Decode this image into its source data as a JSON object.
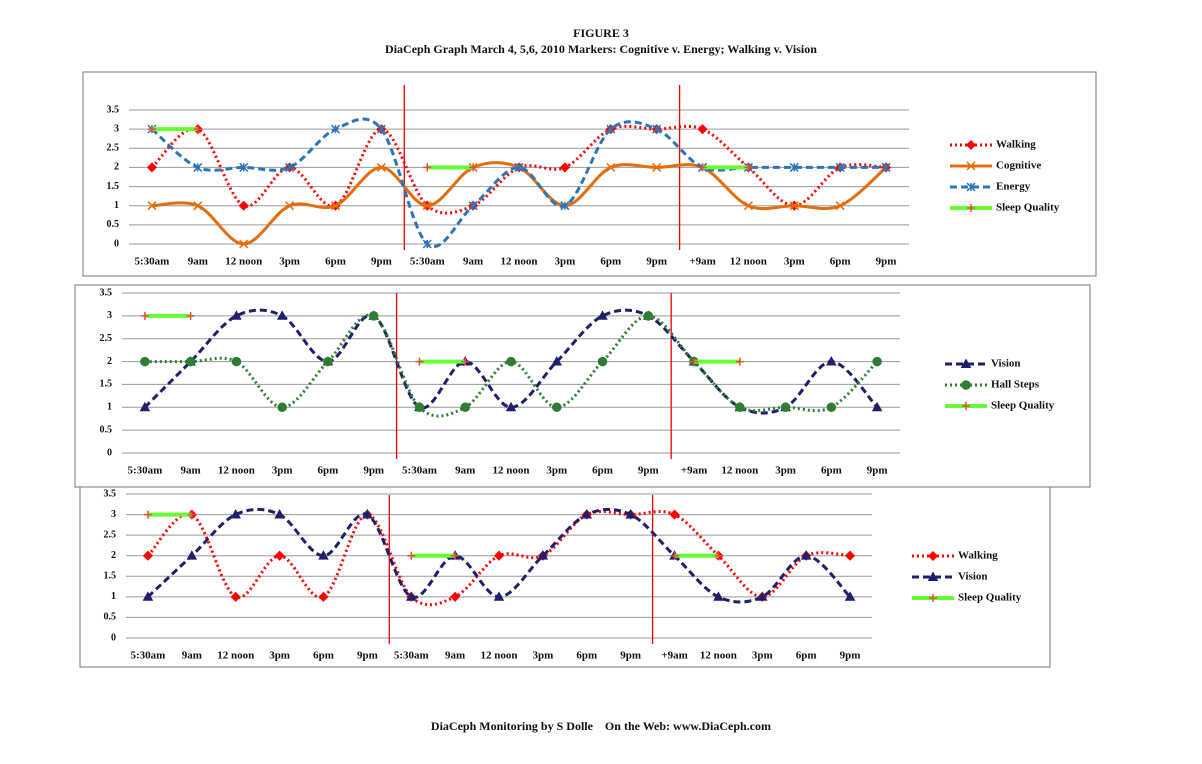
{
  "header": {
    "title": "FIGURE 3",
    "subtitle": "DiaCeph Graph March 4, 5,6, 2010 Markers: Cognitive v. Energy; Walking v. Vision"
  },
  "chart_data": [
    {
      "type": "line",
      "categories": [
        "5:30am",
        "9am",
        "12 noon",
        "3pm",
        "6pm",
        "9pm",
        "5:30am",
        "9am",
        "12 noon",
        "3pm",
        "6pm",
        "9pm",
        "+9am",
        "12 noon",
        "3pm",
        "6pm",
        "9pm"
      ],
      "ylim": [
        0,
        3.5
      ],
      "yticks": [
        0,
        0.5,
        1,
        1.5,
        2,
        2.5,
        3,
        3.5
      ],
      "grid": true,
      "legend": "right",
      "smooth": true,
      "series": [
        {
          "name": "Walking",
          "color": "#ff0000",
          "marker": "diamond",
          "line_style": "dotted",
          "values": [
            2,
            3,
            1,
            2,
            1,
            3,
            1,
            1,
            2,
            2,
            3,
            3,
            3,
            2,
            1,
            2,
            2
          ]
        },
        {
          "name": "Cognitive",
          "color": "#e46c0a",
          "marker": "x",
          "line_style": "solid",
          "values": [
            1,
            1,
            0,
            1,
            1,
            2,
            1,
            2,
            2,
            1,
            2,
            2,
            2,
            1,
            1,
            1,
            2
          ]
        },
        {
          "name": "Energy",
          "color": "#2e75b6",
          "marker": "asterisk",
          "line_style": "dashed",
          "values": [
            3,
            2,
            2,
            2,
            3,
            3,
            0,
            1,
            2,
            1,
            3,
            3,
            2,
            2,
            2,
            2,
            2
          ]
        },
        {
          "name": "Sleep Quality",
          "color": "#66ff33",
          "marker": "plus",
          "line_style": "solid",
          "values": [
            3,
            3,
            null,
            null,
            null,
            null,
            2,
            2,
            null,
            null,
            null,
            null,
            2,
            2,
            null,
            null,
            null
          ]
        }
      ]
    },
    {
      "type": "line",
      "categories": [
        "5:30am",
        "9am",
        "12 noon",
        "3pm",
        "6pm",
        "9pm",
        "5:30am",
        "9am",
        "12 noon",
        "3pm",
        "6pm",
        "9pm",
        "+9am",
        "12 noon",
        "3pm",
        "6pm",
        "9pm"
      ],
      "ylim": [
        0,
        3.5
      ],
      "yticks": [
        0,
        0.5,
        1,
        1.5,
        2,
        2.5,
        3,
        3.5
      ],
      "grid": true,
      "legend": "right",
      "smooth": true,
      "series": [
        {
          "name": "Vision",
          "color": "#1f1f6b",
          "marker": "triangle",
          "line_style": "dashed",
          "values": [
            1,
            2,
            3,
            3,
            2,
            3,
            1,
            2,
            1,
            2,
            3,
            3,
            2,
            1,
            1,
            2,
            1
          ]
        },
        {
          "name": "Hall Steps",
          "color": "#2e7d32",
          "marker": "circle",
          "line_style": "dotted",
          "values": [
            2,
            2,
            2,
            1,
            2,
            3,
            1,
            1,
            2,
            1,
            2,
            3,
            2,
            1,
            1,
            1,
            2
          ]
        },
        {
          "name": "Sleep Quality",
          "color": "#66ff33",
          "marker": "plus",
          "line_style": "solid",
          "values": [
            3,
            3,
            null,
            null,
            null,
            null,
            2,
            2,
            null,
            null,
            null,
            null,
            2,
            2,
            null,
            null,
            null
          ]
        }
      ]
    },
    {
      "type": "line",
      "categories": [
        "5:30am",
        "9am",
        "12 noon",
        "3pm",
        "6pm",
        "9pm",
        "5:30am",
        "9am",
        "12 noon",
        "3pm",
        "6pm",
        "9pm",
        "+9am",
        "12 noon",
        "3pm",
        "6pm",
        "9pm"
      ],
      "ylim": [
        0,
        3.5
      ],
      "yticks": [
        0,
        0.5,
        1,
        1.5,
        2,
        2.5,
        3,
        3.5
      ],
      "grid": true,
      "legend": "right",
      "smooth": true,
      "series": [
        {
          "name": "Walking",
          "color": "#ff0000",
          "marker": "diamond",
          "line_style": "dotted",
          "values": [
            2,
            3,
            1,
            2,
            1,
            3,
            1,
            1,
            2,
            2,
            3,
            3,
            3,
            2,
            1,
            2,
            2
          ]
        },
        {
          "name": "Vision",
          "color": "#1f1f6b",
          "marker": "triangle",
          "line_style": "dashed",
          "values": [
            1,
            2,
            3,
            3,
            2,
            3,
            1,
            2,
            1,
            2,
            3,
            3,
            2,
            1,
            1,
            2,
            1
          ]
        },
        {
          "name": "Sleep Quality",
          "color": "#66ff33",
          "marker": "plus",
          "line_style": "solid",
          "values": [
            3,
            3,
            null,
            null,
            null,
            null,
            2,
            2,
            null,
            null,
            null,
            null,
            2,
            2,
            null,
            null,
            null
          ]
        }
      ]
    }
  ],
  "footer": "DiaCeph Monitoring by S Dolle    On the Web: www.DiaCeph.com"
}
